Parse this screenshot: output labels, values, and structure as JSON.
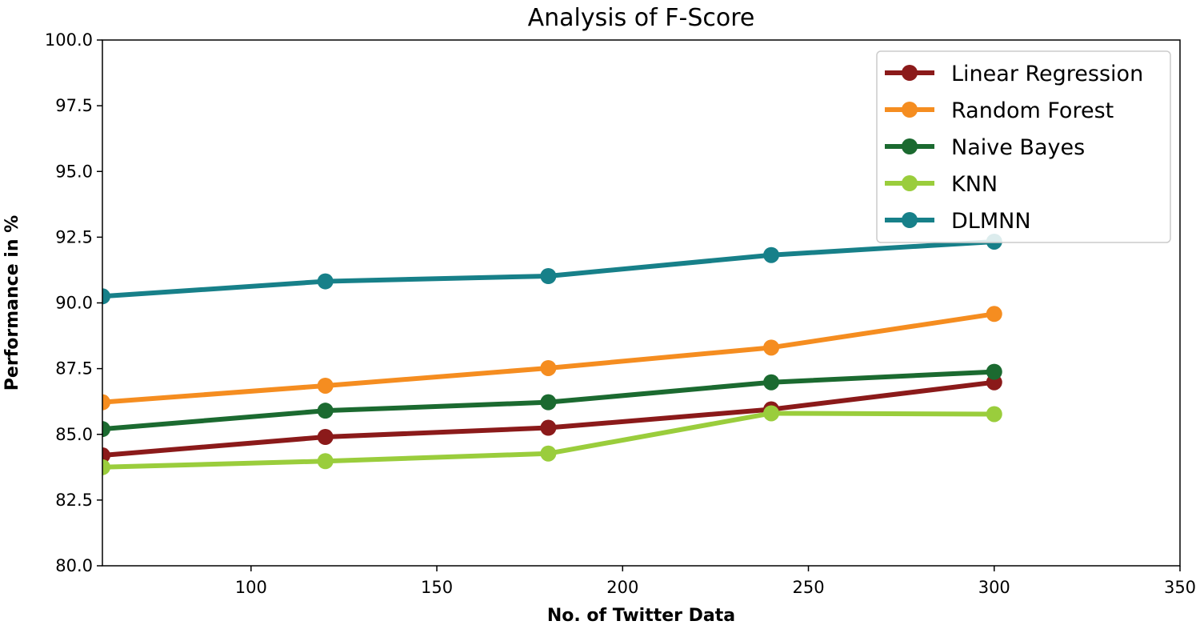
{
  "chart_data": {
    "type": "line",
    "title": "Analysis of F-Score",
    "xlabel": "No. of Twitter Data",
    "ylabel": "Performance in %",
    "xlim": [
      60,
      350
    ],
    "ylim": [
      80,
      100
    ],
    "xticks": [
      100,
      150,
      200,
      250,
      300,
      350
    ],
    "xtick_labels": [
      "100",
      "150",
      "200",
      "250",
      "300",
      "350"
    ],
    "yticks": [
      80,
      82.5,
      85,
      87.5,
      90,
      92.5,
      95,
      97.5,
      100
    ],
    "ytick_labels": [
      "80.0",
      "82.5",
      "85.0",
      "87.5",
      "90.0",
      "92.5",
      "95.0",
      "97.5",
      "100.0"
    ],
    "legend_position": "top-right",
    "x": [
      60,
      120,
      180,
      240,
      300
    ],
    "series": [
      {
        "name": "Linear Regression",
        "color": "#8b1a1a",
        "values": [
          84.2,
          84.9,
          85.25,
          85.95,
          86.98
        ]
      },
      {
        "name": "Random Forest",
        "color": "#f58d20",
        "values": [
          86.22,
          86.85,
          87.52,
          88.3,
          89.58
        ]
      },
      {
        "name": "Naive Bayes",
        "color": "#1b6a30",
        "values": [
          85.2,
          85.9,
          86.22,
          86.98,
          87.38
        ]
      },
      {
        "name": "KNN",
        "color": "#9acd3c",
        "values": [
          83.75,
          83.98,
          84.27,
          85.8,
          85.77
        ]
      },
      {
        "name": "DLMNN",
        "color": "#178089",
        "values": [
          90.25,
          90.82,
          91.02,
          91.82,
          92.33
        ]
      }
    ]
  }
}
